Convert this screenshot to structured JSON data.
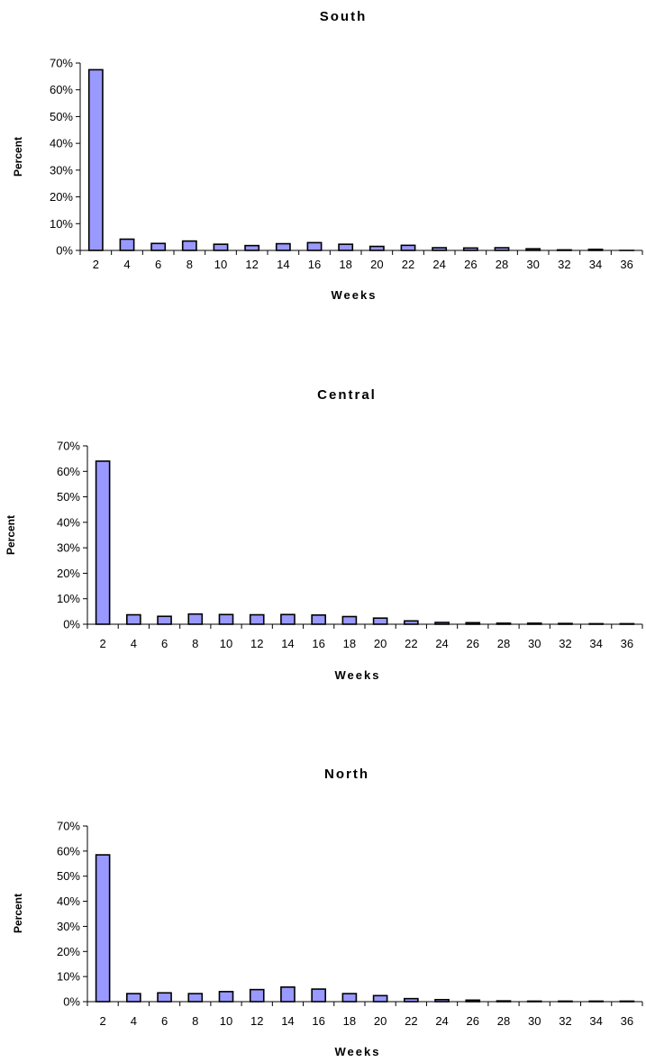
{
  "chart_data": [
    {
      "type": "bar",
      "title": "South",
      "xlabel": "Weeks",
      "ylabel": "Percent",
      "ylim": [
        0,
        70
      ],
      "yticks": [
        "0%",
        "10%",
        "20%",
        "30%",
        "40%",
        "50%",
        "60%",
        "70%"
      ],
      "categories": [
        "2",
        "4",
        "6",
        "8",
        "10",
        "12",
        "14",
        "16",
        "18",
        "20",
        "22",
        "24",
        "26",
        "28",
        "30",
        "32",
        "34",
        "36"
      ],
      "values": [
        67.5,
        4.2,
        2.6,
        3.5,
        2.3,
        1.8,
        2.5,
        2.9,
        2.3,
        1.5,
        1.9,
        1.0,
        0.9,
        1.0,
        0.6,
        0.2,
        0.4,
        0.0
      ],
      "bar_color": "#9999ff",
      "grid": false
    },
    {
      "type": "bar",
      "title": "Central",
      "xlabel": "Weeks",
      "ylabel": "Percent",
      "ylim": [
        0,
        70
      ],
      "yticks": [
        "0%",
        "10%",
        "20%",
        "30%",
        "40%",
        "50%",
        "60%",
        "70%"
      ],
      "categories": [
        "2",
        "4",
        "6",
        "8",
        "10",
        "12",
        "14",
        "16",
        "18",
        "20",
        "22",
        "24",
        "26",
        "28",
        "30",
        "32",
        "34",
        "36"
      ],
      "values": [
        64.0,
        3.7,
        3.1,
        4.0,
        3.8,
        3.7,
        3.8,
        3.6,
        3.0,
        2.4,
        1.3,
        0.7,
        0.6,
        0.4,
        0.4,
        0.3,
        0.2,
        0.2
      ],
      "bar_color": "#9999ff",
      "grid": false
    },
    {
      "type": "bar",
      "title": "North",
      "xlabel": "Weeks",
      "ylabel": "Percent",
      "ylim": [
        0,
        70
      ],
      "yticks": [
        "0%",
        "10%",
        "20%",
        "30%",
        "40%",
        "50%",
        "60%",
        "70%"
      ],
      "categories": [
        "2",
        "4",
        "6",
        "8",
        "10",
        "12",
        "14",
        "16",
        "18",
        "20",
        "22",
        "24",
        "26",
        "28",
        "30",
        "32",
        "34",
        "36"
      ],
      "values": [
        58.5,
        3.2,
        3.5,
        3.2,
        4.0,
        4.8,
        5.8,
        5.0,
        3.2,
        2.4,
        1.2,
        0.8,
        0.6,
        0.3,
        0.2,
        0.2,
        0.2,
        0.2
      ],
      "bar_color": "#9999ff",
      "grid": false
    }
  ]
}
